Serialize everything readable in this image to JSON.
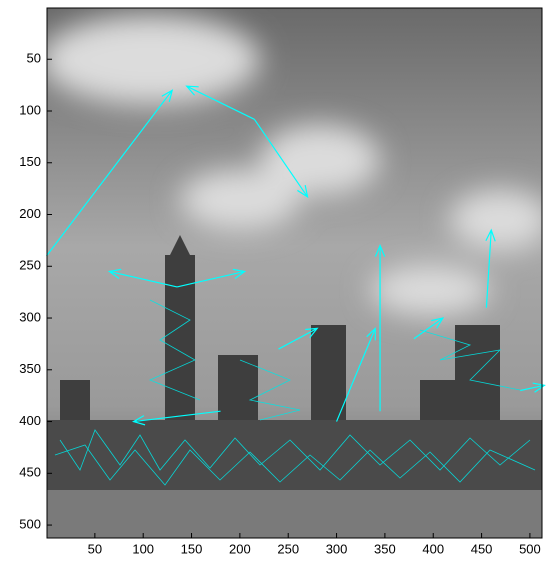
{
  "chart_data": {
    "type": "quiver",
    "xlim": [
      0.5,
      512.5
    ],
    "ylim": [
      0.5,
      512.5
    ],
    "y_reversed": true,
    "xticks": [
      50,
      100,
      150,
      200,
      250,
      300,
      350,
      400,
      450,
      500
    ],
    "yticks": [
      50,
      100,
      150,
      200,
      250,
      300,
      350,
      400,
      450,
      500
    ],
    "color": "#00ffff",
    "arrows": {
      "x": [
        0,
        215,
        215,
        135,
        135,
        345,
        455,
        300,
        490,
        180,
        240,
        380
      ],
      "y": [
        240,
        108,
        108,
        270,
        270,
        390,
        290,
        400,
        370,
        390,
        330,
        320
      ],
      "u": [
        130,
        -70,
        55,
        -70,
        70,
        0,
        5,
        40,
        25,
        -90,
        40,
        30
      ],
      "v": [
        -160,
        -32,
        75,
        -15,
        -15,
        -160,
        -75,
        -90,
        -5,
        10,
        -20,
        -20
      ]
    }
  }
}
